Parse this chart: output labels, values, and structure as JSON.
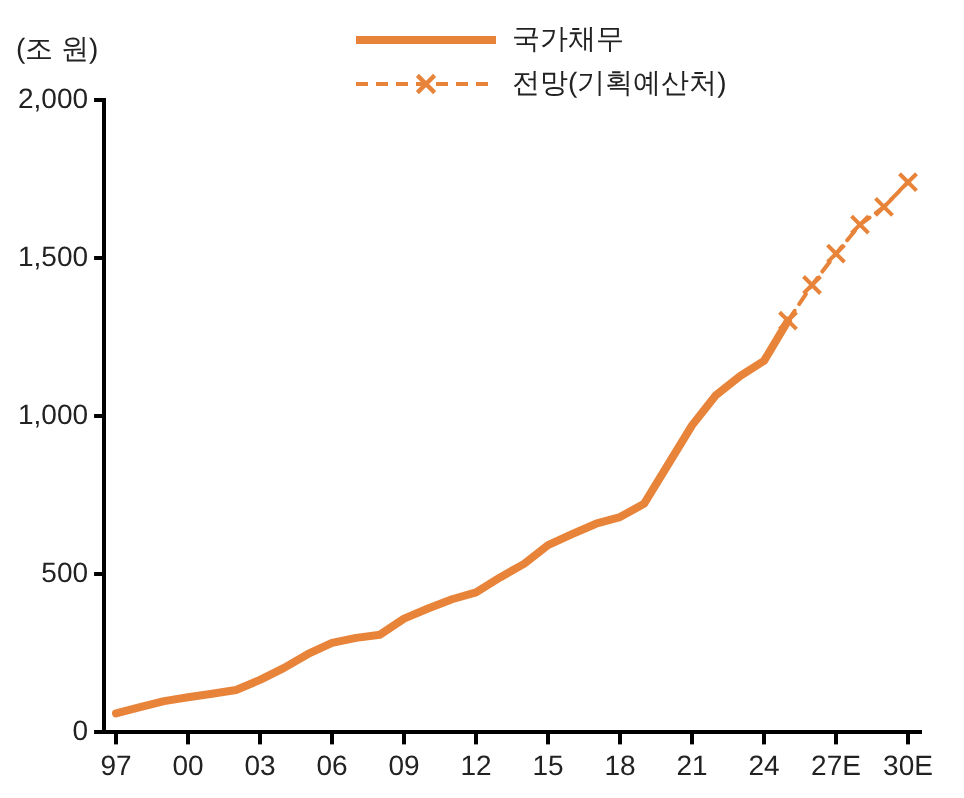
{
  "chart_data": {
    "type": "line",
    "ylabel": "(조 원)",
    "categories": [
      "97",
      null,
      null,
      "00",
      null,
      null,
      "03",
      null,
      null,
      "06",
      null,
      null,
      "09",
      null,
      null,
      "12",
      null,
      null,
      "15",
      null,
      null,
      "18",
      null,
      null,
      "21",
      null,
      null,
      "24",
      null,
      null,
      "27E",
      null,
      null,
      "30E"
    ],
    "series": [
      {
        "name": "국가채무",
        "color": "#e8833a",
        "line_style": "solid",
        "marker": "none",
        "values": [
          60,
          80,
          99,
          111,
          122,
          134,
          166,
          204,
          248,
          283,
          299,
          309,
          360,
          392,
          421,
          443,
          490,
          533,
          592,
          627,
          660,
          681,
          723,
          847,
          971,
          1067,
          1127,
          1175,
          1302,
          null,
          null,
          null,
          null,
          null
        ]
      },
      {
        "name": "전망(기획예산처)",
        "color": "#e8833a",
        "line_style": "dashed",
        "marker": "cross",
        "values": [
          null,
          null,
          null,
          null,
          null,
          null,
          null,
          null,
          null,
          null,
          null,
          null,
          null,
          null,
          null,
          null,
          null,
          null,
          null,
          null,
          null,
          null,
          null,
          null,
          null,
          null,
          null,
          null,
          1302,
          1415,
          1514,
          1606,
          1662,
          1740
        ]
      }
    ],
    "ylim": [
      0,
      2000
    ],
    "yticks": [
      0,
      500,
      {
        "value": 1000,
        "label": "1,000"
      },
      {
        "value": 1500,
        "label": "1,500"
      },
      {
        "value": 2000,
        "label": "2,000"
      }
    ],
    "grid": false,
    "legend": "top"
  }
}
